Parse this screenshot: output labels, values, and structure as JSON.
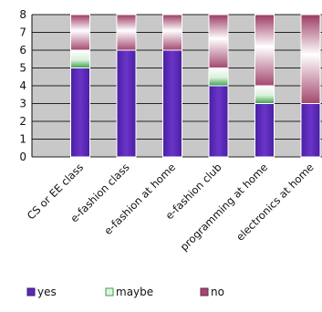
{
  "chart_data": {
    "type": "bar",
    "stacked": true,
    "title": "",
    "xlabel": "",
    "ylabel": "",
    "ylim": [
      0,
      8
    ],
    "yticks": [
      0,
      1,
      2,
      3,
      4,
      5,
      6,
      7,
      8
    ],
    "grid": true,
    "legend_position": "bottom",
    "categories": [
      "CS or EE class",
      "e-fashion class",
      "e-fashion at home",
      "e-fashion club",
      "programming at home",
      "electronics at home"
    ],
    "series": [
      {
        "name": "yes",
        "values": [
          5,
          6,
          6,
          4,
          3,
          3
        ],
        "color": "#5b2ab3"
      },
      {
        "name": "maybe",
        "values": [
          1,
          0,
          0,
          1,
          1,
          0
        ],
        "color": "#6cc07a"
      },
      {
        "name": "no",
        "values": [
          2,
          2,
          2,
          3,
          4,
          5
        ],
        "color": "#a3486e"
      }
    ]
  },
  "colors": {
    "plot_background": "#c8c8c8",
    "grid_line": "#222222",
    "bar_gap": "#ffffff"
  }
}
